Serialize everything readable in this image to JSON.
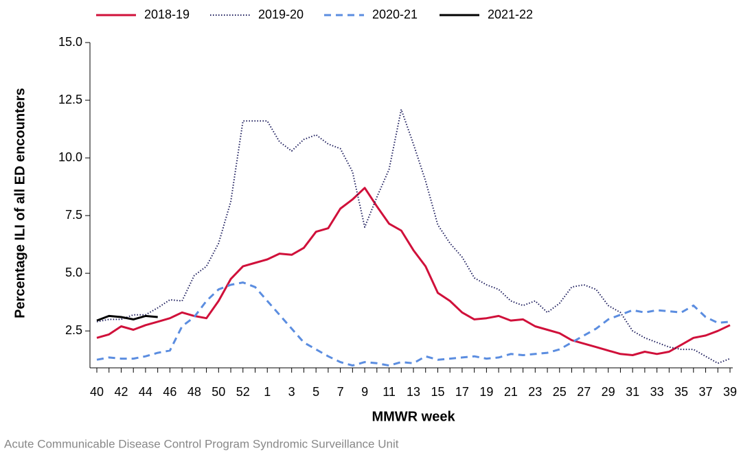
{
  "chart_data": {
    "type": "line",
    "y_label": "Percentage ILI of all ED encounters",
    "x_label": "MMWR week",
    "source": "Acute Communicable Disease Control Program Syndromic Surveillance Unit",
    "categories": [
      "40",
      null,
      "42",
      null,
      "44",
      null,
      "46",
      null,
      "48",
      null,
      "50",
      null,
      "52",
      null,
      "1",
      null,
      "3",
      null,
      "5",
      null,
      "7",
      null,
      "9",
      null,
      "11",
      null,
      "13",
      null,
      "15",
      null,
      "17",
      null,
      "19",
      null,
      "21",
      null,
      "23",
      null,
      "25",
      null,
      "27",
      null,
      "29",
      null,
      "31",
      null,
      "33",
      null,
      "35",
      null,
      "37",
      null,
      "39"
    ],
    "ylim": [
      0.9,
      15
    ],
    "yticks": [
      {
        "value": 2.5,
        "label": "2.5"
      },
      {
        "value": 5,
        "label": "5.0"
      },
      {
        "value": 7.5,
        "label": "7.5"
      },
      {
        "value": 10,
        "label": "10.0"
      },
      {
        "value": 12.5,
        "label": "12.5"
      },
      {
        "value": 15,
        "label": "15.0"
      }
    ],
    "series": [
      {
        "name": "2018-19",
        "color": "#d0103a",
        "dash": "solid",
        "values": [
          2.2,
          2.35,
          2.7,
          2.55,
          2.75,
          2.9,
          3.05,
          3.3,
          3.15,
          3.05,
          3.8,
          4.75,
          5.3,
          5.45,
          5.6,
          5.85,
          5.8,
          6.1,
          6.8,
          6.95,
          7.8,
          8.2,
          8.7,
          7.9,
          7.15,
          6.85,
          6.0,
          5.3,
          4.15,
          3.8,
          3.3,
          3.0,
          3.05,
          3.15,
          2.95,
          3.0,
          2.7,
          2.55,
          2.4,
          2.1,
          1.95,
          1.8,
          1.65,
          1.5,
          1.45,
          1.6,
          1.5,
          1.6,
          1.9,
          2.2,
          2.3,
          2.5,
          2.75
        ]
      },
      {
        "name": "2019-20",
        "color": "#1c1c5c",
        "dash": "dotted",
        "values": [
          2.9,
          3.0,
          3.0,
          3.2,
          3.2,
          3.5,
          3.85,
          3.8,
          4.9,
          5.3,
          6.3,
          8.1,
          11.6,
          11.6,
          11.6,
          10.7,
          10.3,
          10.8,
          11.0,
          10.6,
          10.4,
          9.4,
          7.0,
          8.3,
          9.5,
          12.1,
          10.6,
          9.0,
          7.1,
          6.3,
          5.7,
          4.8,
          4.5,
          4.3,
          3.8,
          3.6,
          3.8,
          3.3,
          3.7,
          4.4,
          4.5,
          4.3,
          3.6,
          3.3,
          2.5,
          2.2,
          2.0,
          1.8,
          1.7,
          1.7,
          1.4,
          1.1,
          1.3
        ]
      },
      {
        "name": "2020-21",
        "color": "#5b8de0",
        "dash": "dashed",
        "values": [
          1.25,
          1.35,
          1.3,
          1.3,
          1.4,
          1.55,
          1.65,
          2.7,
          3.1,
          3.8,
          4.3,
          4.5,
          4.6,
          4.4,
          3.8,
          3.2,
          2.6,
          2.0,
          1.7,
          1.4,
          1.15,
          1.0,
          1.15,
          1.1,
          1.0,
          1.15,
          1.1,
          1.4,
          1.25,
          1.3,
          1.35,
          1.4,
          1.3,
          1.35,
          1.5,
          1.45,
          1.5,
          1.55,
          1.7,
          2.0,
          2.3,
          2.6,
          3.0,
          3.2,
          3.4,
          3.3,
          3.4,
          3.35,
          3.3,
          3.6,
          3.1,
          2.85,
          2.9
        ]
      },
      {
        "name": "2021-22",
        "color": "#000000",
        "dash": "solid",
        "values": [
          2.95,
          3.15,
          3.1,
          3.0,
          3.15,
          3.1,
          null,
          null,
          null,
          null,
          null,
          null,
          null,
          null,
          null,
          null,
          null,
          null,
          null,
          null,
          null,
          null,
          null,
          null,
          null,
          null,
          null,
          null,
          null,
          null,
          null,
          null,
          null,
          null,
          null,
          null,
          null,
          null,
          null,
          null,
          null,
          null,
          null,
          null,
          null,
          null,
          null,
          null,
          null,
          null,
          null,
          null,
          null
        ]
      }
    ]
  }
}
